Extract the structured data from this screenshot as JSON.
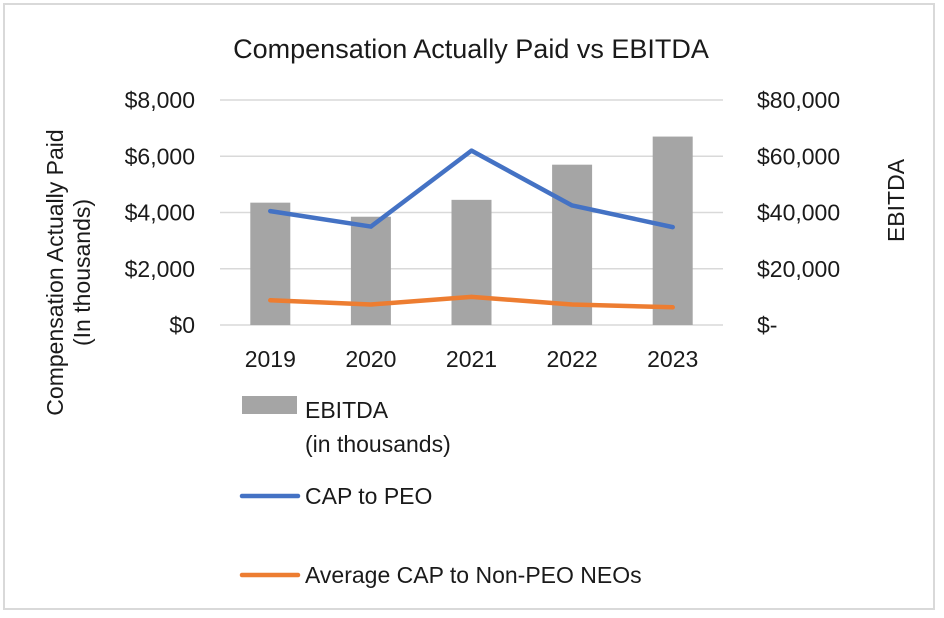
{
  "chart_data": {
    "type": "bar",
    "title": "Compensation Actually Paid vs EBITDA",
    "categories": [
      "2019",
      "2020",
      "2021",
      "2022",
      "2023"
    ],
    "ylabel_left": [
      "Compensation Actually Paid",
      "(In thousands)"
    ],
    "ylabel_right": "EBITDA",
    "y_left": {
      "min": 0,
      "max": 8000,
      "ticks": [
        0,
        2000,
        4000,
        6000,
        8000
      ],
      "tick_labels": [
        "$0",
        "$2,000",
        "$4,000",
        "$6,000",
        "$8,000"
      ]
    },
    "y_right": {
      "min": 0,
      "max": 80000,
      "ticks": [
        0,
        20000,
        40000,
        60000,
        80000
      ],
      "tick_labels": [
        "$-",
        "$20,000",
        "$40,000",
        "$60,000",
        "$80,000"
      ]
    },
    "grid": true,
    "legend_position": "bottom",
    "series": [
      {
        "name": "EBITDA",
        "legend_lines": [
          "EBITDA",
          "(in thousands)"
        ],
        "type": "bar",
        "axis": "right",
        "color": "#a5a5a5",
        "values": [
          43500,
          38500,
          44500,
          57000,
          67000
        ]
      },
      {
        "name": "CAP to PEO",
        "legend_lines": [
          "CAP to PEO"
        ],
        "type": "line",
        "axis": "left",
        "color": "#4472c4",
        "values": [
          4050,
          3500,
          6200,
          4250,
          3480
        ]
      },
      {
        "name": "Average CAP to Non-PEO NEOs",
        "legend_lines": [
          "Average CAP to Non-PEO NEOs"
        ],
        "type": "line",
        "axis": "left",
        "color": "#ed7d31",
        "values": [
          880,
          730,
          1000,
          730,
          630
        ]
      }
    ]
  }
}
